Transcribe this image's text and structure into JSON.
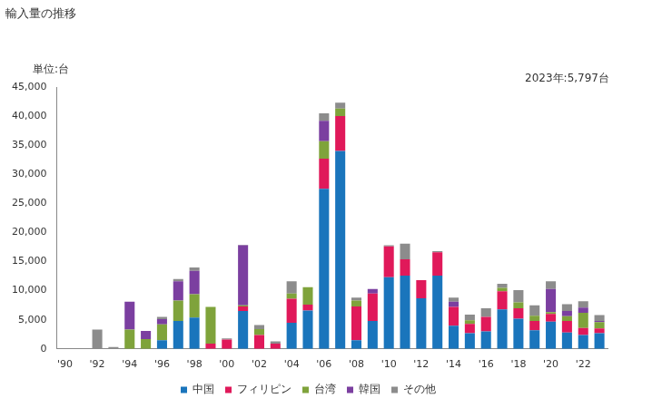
{
  "chart_data": {
    "type": "bar",
    "title": "輸入量の推移",
    "ylabel": "単位:台",
    "annotation": "2023年:5,797台",
    "categories": [
      "'90",
      null,
      "'92",
      null,
      "'94",
      null,
      "'96",
      null,
      "'98",
      null,
      "'00",
      null,
      "'02",
      null,
      "'04",
      null,
      "'06",
      null,
      "'08",
      null,
      "'10",
      null,
      "'12",
      null,
      "'14",
      null,
      "'16",
      null,
      "'18",
      null,
      "'20",
      null,
      "'22",
      null
    ],
    "series": [
      {
        "name": "中国",
        "color": "#1a75bc",
        "values": [
          0,
          0,
          0,
          0,
          0,
          0,
          1500,
          4800,
          5400,
          0,
          0,
          6500,
          0,
          0,
          4500,
          6600,
          27500,
          34000,
          1500,
          4800,
          12300,
          12600,
          8700,
          12600,
          4000,
          2700,
          3000,
          6800,
          5200,
          3200,
          4700,
          2800,
          2400,
          2700
        ]
      },
      {
        "name": "フィリピン",
        "color": "#e0195a",
        "values": [
          0,
          0,
          0,
          0,
          0,
          0,
          0,
          0,
          0,
          900,
          1600,
          800,
          2400,
          900,
          4100,
          1000,
          5200,
          6000,
          5800,
          4700,
          5300,
          2800,
          3100,
          4000,
          3200,
          1600,
          2500,
          3100,
          1800,
          1600,
          1300,
          2000,
          1200,
          800
        ]
      },
      {
        "name": "台湾",
        "color": "#7fa33b",
        "values": [
          0,
          0,
          0,
          0,
          3300,
          1700,
          2700,
          3500,
          4000,
          6300,
          0,
          200,
          1000,
          0,
          900,
          3000,
          3000,
          1300,
          1000,
          0,
          0,
          0,
          0,
          0,
          0,
          600,
          0,
          600,
          1000,
          900,
          300,
          800,
          2600,
          1100
        ]
      },
      {
        "name": "韓国",
        "color": "#7b3fa0",
        "values": [
          0,
          0,
          0,
          0,
          4800,
          1400,
          900,
          3300,
          4000,
          0,
          0,
          10300,
          0,
          0,
          0,
          0,
          3500,
          0,
          0,
          800,
          0,
          0,
          0,
          0,
          900,
          0,
          0,
          0,
          0,
          0,
          4000,
          900,
          900,
          200
        ]
      },
      {
        "name": "その他",
        "color": "#8c8c8c",
        "values": [
          0,
          0,
          3300,
          300,
          0,
          0,
          400,
          400,
          600,
          0,
          200,
          100,
          700,
          400,
          2100,
          0,
          1300,
          1000,
          500,
          0,
          200,
          2700,
          0,
          200,
          700,
          1000,
          1500,
          700,
          2100,
          1800,
          1300,
          1200,
          1100,
          997
        ]
      }
    ],
    "ylim": [
      0,
      45000
    ],
    "yticks": [
      0,
      {
        "value": 5000,
        "label": "5,000"
      },
      {
        "value": 10000,
        "label": "10,000"
      },
      {
        "value": 15000,
        "label": "15,000"
      },
      {
        "value": 20000,
        "label": "20,000"
      },
      {
        "value": 25000,
        "label": "25,000"
      },
      {
        "value": 30000,
        "label": "30,000"
      },
      {
        "value": 35000,
        "label": "35,000"
      },
      {
        "value": 40000,
        "label": "40,000"
      },
      {
        "value": 45000,
        "label": "45,000"
      }
    ],
    "stacked": true,
    "grid": false,
    "legend": "bottom"
  }
}
